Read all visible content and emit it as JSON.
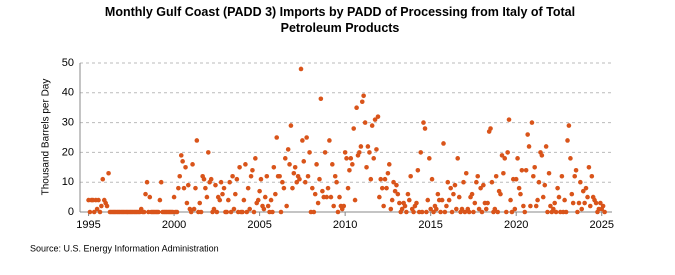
{
  "chart_data": {
    "type": "scatter",
    "title": "Monthly Gulf Coast (PADD 3) Imports by PADD of Processing from Italy of Total Petroleum Products",
    "y_label": "Thousand Barrels per Day",
    "source": "Source: U.S. Energy Information Administration",
    "color": "#d9541a",
    "grid": true,
    "xlim": [
      1994.5,
      2025.6
    ],
    "xticks": [
      1995,
      2000,
      2005,
      2010,
      2015,
      2020,
      2025
    ],
    "ylim": [
      0,
      50
    ],
    "yticks": [
      0,
      10,
      20,
      30,
      40,
      50
    ],
    "x": [
      1995,
      1995.08,
      1995.17,
      1995.25,
      1995.33,
      1995.42,
      1995.5,
      1995.58,
      1995.67,
      1995.75,
      1995.83,
      1995.92,
      1996,
      1996.08,
      1996.17,
      1996.25,
      1996.33,
      1996.42,
      1996.5,
      1996.58,
      1996.67,
      1996.75,
      1996.83,
      1996.92,
      1997,
      1997.08,
      1997.17,
      1997.25,
      1997.33,
      1997.42,
      1997.5,
      1997.58,
      1997.67,
      1997.75,
      1997.83,
      1997.92,
      1998,
      1998.08,
      1998.17,
      1998.25,
      1998.33,
      1998.42,
      1998.5,
      1998.58,
      1998.67,
      1998.75,
      1998.83,
      1998.92,
      1999,
      1999.08,
      1999.17,
      1999.25,
      1999.33,
      1999.42,
      1999.5,
      1999.58,
      1999.67,
      1999.75,
      1999.83,
      1999.92,
      2000,
      2000.08,
      2000.17,
      2000.25,
      2000.33,
      2000.42,
      2000.5,
      2000.58,
      2000.67,
      2000.75,
      2000.83,
      2000.92,
      2001,
      2001.08,
      2001.17,
      2001.25,
      2001.33,
      2001.42,
      2001.5,
      2001.58,
      2001.67,
      2001.75,
      2001.83,
      2001.92,
      2002,
      2002.08,
      2002.17,
      2002.25,
      2002.33,
      2002.42,
      2002.5,
      2002.58,
      2002.67,
      2002.75,
      2002.83,
      2002.92,
      2003,
      2003.08,
      2003.17,
      2003.25,
      2003.33,
      2003.42,
      2003.5,
      2003.58,
      2003.67,
      2003.75,
      2003.83,
      2003.92,
      2004,
      2004.08,
      2004.17,
      2004.25,
      2004.33,
      2004.42,
      2004.5,
      2004.58,
      2004.67,
      2004.75,
      2004.83,
      2004.92,
      2005,
      2005.08,
      2005.17,
      2005.25,
      2005.33,
      2005.42,
      2005.5,
      2005.58,
      2005.67,
      2005.75,
      2005.83,
      2005.92,
      2006,
      2006.08,
      2006.17,
      2006.25,
      2006.33,
      2006.42,
      2006.5,
      2006.58,
      2006.67,
      2006.75,
      2006.83,
      2006.92,
      2007,
      2007.08,
      2007.17,
      2007.25,
      2007.33,
      2007.42,
      2007.5,
      2007.58,
      2007.67,
      2007.75,
      2007.83,
      2007.92,
      2008,
      2008.08,
      2008.17,
      2008.25,
      2008.33,
      2008.42,
      2008.5,
      2008.58,
      2008.67,
      2008.75,
      2008.83,
      2008.92,
      2009,
      2009.08,
      2009.17,
      2009.25,
      2009.33,
      2009.42,
      2009.5,
      2009.58,
      2009.67,
      2009.75,
      2009.83,
      2009.92,
      2010,
      2010.08,
      2010.17,
      2010.25,
      2010.33,
      2010.42,
      2010.5,
      2010.58,
      2010.67,
      2010.75,
      2010.83,
      2010.92,
      2011,
      2011.08,
      2011.17,
      2011.25,
      2011.33,
      2011.42,
      2011.5,
      2011.58,
      2011.67,
      2011.75,
      2011.83,
      2011.92,
      2012,
      2012.08,
      2012.17,
      2012.25,
      2012.33,
      2012.42,
      2012.5,
      2012.58,
      2012.67,
      2012.75,
      2012.83,
      2012.92,
      2013,
      2013.08,
      2013.17,
      2013.25,
      2013.33,
      2013.42,
      2013.5,
      2013.58,
      2013.67,
      2013.75,
      2013.83,
      2013.92,
      2014,
      2014.08,
      2014.17,
      2014.25,
      2014.33,
      2014.42,
      2014.5,
      2014.58,
      2014.67,
      2014.75,
      2014.83,
      2014.92,
      2015,
      2015.08,
      2015.17,
      2015.25,
      2015.33,
      2015.42,
      2015.5,
      2015.58,
      2015.67,
      2015.75,
      2015.83,
      2015.92,
      2016,
      2016.08,
      2016.17,
      2016.25,
      2016.33,
      2016.42,
      2016.5,
      2016.58,
      2016.67,
      2016.75,
      2016.83,
      2016.92,
      2017,
      2017.08,
      2017.17,
      2017.25,
      2017.33,
      2017.42,
      2017.5,
      2017.58,
      2017.67,
      2017.75,
      2017.83,
      2017.92,
      2018,
      2018.08,
      2018.17,
      2018.25,
      2018.33,
      2018.42,
      2018.5,
      2018.58,
      2018.67,
      2018.75,
      2018.83,
      2018.92,
      2019,
      2019.08,
      2019.17,
      2019.25,
      2019.33,
      2019.42,
      2019.5,
      2019.58,
      2019.67,
      2019.75,
      2019.83,
      2019.92,
      2020,
      2020.08,
      2020.17,
      2020.25,
      2020.33,
      2020.42,
      2020.5,
      2020.58,
      2020.67,
      2020.75,
      2020.83,
      2020.92,
      2021,
      2021.08,
      2021.17,
      2021.25,
      2021.33,
      2021.42,
      2021.5,
      2021.58,
      2021.67,
      2021.75,
      2021.83,
      2021.92,
      2022,
      2022.08,
      2022.17,
      2022.25,
      2022.33,
      2022.42,
      2022.5,
      2022.58,
      2022.67,
      2022.75,
      2022.83,
      2022.92,
      2023,
      2023.08,
      2023.17,
      2023.25,
      2023.33,
      2023.42,
      2023.5,
      2023.58,
      2023.67,
      2023.75,
      2023.83,
      2023.92,
      2024,
      2024.08,
      2024.17,
      2024.25,
      2024.33,
      2024.42,
      2024.5,
      2024.58,
      2024.67,
      2024.75,
      2024.83,
      2024.92,
      2025,
      2025.08,
      2025.17
    ],
    "values": [
      4,
      0,
      4,
      4,
      0,
      4,
      1,
      4,
      0,
      2,
      11,
      4,
      3,
      2,
      13,
      0,
      0,
      0,
      0,
      0,
      0,
      0,
      0,
      0,
      0,
      0,
      0,
      0,
      0,
      0,
      0,
      0,
      0,
      0,
      0,
      0,
      0,
      1,
      0,
      0,
      6,
      10,
      0,
      5,
      0,
      0,
      0,
      0,
      0,
      0,
      4,
      10,
      0,
      0,
      0,
      0,
      0,
      0,
      0,
      0,
      5,
      0,
      0,
      8,
      12,
      19,
      17,
      8,
      15,
      3,
      9,
      1,
      0,
      16,
      1,
      8,
      24,
      0,
      3,
      0,
      12,
      11,
      8,
      5,
      20,
      10,
      11,
      0,
      1,
      9,
      0,
      5,
      4,
      10,
      6,
      8,
      0,
      0,
      4,
      10,
      0,
      12,
      1,
      6,
      11,
      0,
      15,
      0,
      0,
      4,
      16,
      0,
      8,
      1,
      12,
      14,
      0,
      18,
      3,
      4,
      7,
      11,
      2,
      1,
      5,
      12,
      2,
      0,
      4,
      0,
      15,
      6,
      25,
      12,
      12,
      0,
      10,
      8,
      18,
      2,
      21,
      16,
      29,
      8,
      13,
      15,
      10,
      12,
      11,
      48,
      24,
      17,
      10,
      25,
      12,
      20,
      0,
      8,
      0,
      6,
      16,
      3,
      11,
      38,
      7,
      5,
      20,
      5,
      8,
      24,
      5,
      16,
      2,
      12,
      10,
      0,
      5,
      2,
      1,
      2,
      20,
      18,
      8,
      14,
      18,
      16,
      28,
      4,
      35,
      19,
      20,
      22,
      37,
      39,
      30,
      15,
      22,
      20,
      11,
      29,
      18,
      31,
      21,
      32,
      5,
      11,
      8,
      2,
      11,
      8,
      13,
      16,
      1,
      4,
      10,
      7,
      9,
      6,
      3,
      0,
      1,
      3,
      2,
      0,
      6,
      4,
      12,
      1,
      0,
      2,
      3,
      14,
      0,
      20,
      0,
      30,
      28,
      0,
      4,
      18,
      1,
      11,
      0,
      2,
      1,
      6,
      4,
      0,
      4,
      23,
      0,
      2,
      10,
      4,
      8,
      0,
      6,
      9,
      1,
      18,
      5,
      0,
      1,
      10,
      0,
      13,
      1,
      0,
      5,
      6,
      0,
      3,
      10,
      12,
      1,
      8,
      0,
      9,
      3,
      1,
      3,
      27,
      28,
      10,
      0,
      1,
      12,
      0,
      7,
      6,
      19,
      13,
      18,
      0,
      20,
      31,
      4,
      0,
      11,
      1,
      11,
      18,
      8,
      6,
      14,
      2,
      0,
      14,
      26,
      22,
      2,
      30,
      12,
      15,
      2,
      4,
      10,
      20,
      19,
      5,
      9,
      22,
      0,
      13,
      2,
      0,
      1,
      3,
      0,
      8,
      5,
      0,
      12,
      0,
      4,
      0,
      24,
      29,
      18,
      6,
      3,
      12,
      14,
      0,
      3,
      10,
      1,
      7,
      3,
      8,
      5,
      15,
      2,
      12,
      5,
      4,
      3,
      0,
      1,
      3,
      1,
      2,
      0
    ]
  }
}
